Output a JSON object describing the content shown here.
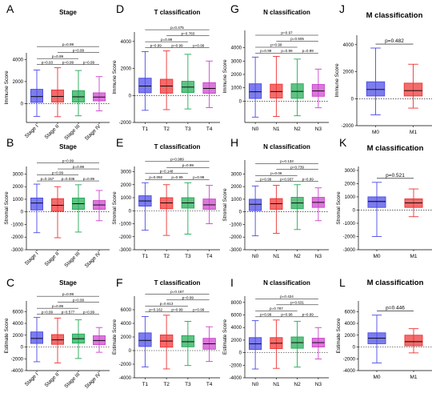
{
  "chart_data": [
    {
      "type": "box",
      "panel": "A",
      "title": "Stage",
      "ylabel": "Immune Score",
      "categories": [
        "Stage I",
        "Stage II",
        "Stage III",
        "Stage IV"
      ],
      "colors": [
        "#4a4ae8",
        "#ee3333",
        "#22aa55",
        "#cc44cc"
      ],
      "yticks": [
        0,
        2000,
        4000
      ],
      "ylim": [
        -1700,
        4600
      ],
      "boxes": [
        {
          "min": -1150,
          "q1": 120,
          "median": 640,
          "q3": 1300,
          "max": 3050
        },
        {
          "min": -1180,
          "q1": 150,
          "median": 650,
          "q3": 1240,
          "max": 3250
        },
        {
          "min": -1100,
          "q1": 140,
          "median": 620,
          "q3": 1180,
          "max": 3000
        },
        {
          "min": -650,
          "q1": 250,
          "median": 600,
          "q3": 980,
          "max": 2450
        }
      ],
      "comparisons": [
        {
          "pair": [
            1,
            2
          ],
          "p": "p=0.93"
        },
        {
          "pair": [
            2,
            3
          ],
          "p": "p=0.99"
        },
        {
          "pair": [
            3,
            4
          ],
          "p": "p=0.99"
        },
        {
          "pair": [
            1,
            3
          ],
          "p": "p=0.99"
        },
        {
          "pair": [
            2,
            4
          ],
          "p": "p=0.99"
        },
        {
          "pair": [
            1,
            4
          ],
          "p": "p=0.99"
        }
      ]
    },
    {
      "type": "box",
      "panel": "D",
      "title": "T classification",
      "ylabel": "Immune Score",
      "categories": [
        "T1",
        "T2",
        "T3",
        "T4"
      ],
      "colors": [
        "#4a4ae8",
        "#ee3333",
        "#22aa55",
        "#cc44cc"
      ],
      "yticks": [
        -2000,
        0,
        2000,
        4000
      ],
      "ylim": [
        -2000,
        4700
      ],
      "boxes": [
        {
          "min": -1100,
          "q1": 200,
          "median": 700,
          "q3": 1280,
          "max": 3250
        },
        {
          "min": -1050,
          "q1": 170,
          "median": 700,
          "q3": 1200,
          "max": 3300
        },
        {
          "min": -1000,
          "q1": 220,
          "median": 620,
          "q3": 1050,
          "max": 3050
        },
        {
          "min": -900,
          "q1": 160,
          "median": 520,
          "q3": 950,
          "max": 2550
        }
      ],
      "comparisons": [
        {
          "pair": [
            1,
            2
          ],
          "p": "p=0.99"
        },
        {
          "pair": [
            2,
            3
          ],
          "p": "p=0.99"
        },
        {
          "pair": [
            3,
            4
          ],
          "p": "p=0.99"
        },
        {
          "pair": [
            1,
            3
          ],
          "p": "p=0.99"
        },
        {
          "pair": [
            2,
            4
          ],
          "p": "p=0.783"
        },
        {
          "pair": [
            1,
            4
          ],
          "p": "p=0.475"
        }
      ]
    },
    {
      "type": "box",
      "panel": "G",
      "title": "N classification",
      "ylabel": "Immune Score",
      "categories": [
        "N0",
        "N1",
        "N2",
        "N3"
      ],
      "colors": [
        "#4a4ae8",
        "#ee3333",
        "#22aa55",
        "#cc44cc"
      ],
      "yticks": [
        0,
        1000,
        2000,
        3000,
        4000
      ],
      "ylim": [
        -1600,
        5300
      ],
      "boxes": [
        {
          "min": -1200,
          "q1": 200,
          "median": 700,
          "q3": 1300,
          "max": 3300
        },
        {
          "min": -1150,
          "q1": 230,
          "median": 720,
          "q3": 1270,
          "max": 3350
        },
        {
          "min": -1100,
          "q1": 210,
          "median": 730,
          "q3": 1300,
          "max": 3150
        },
        {
          "min": -500,
          "q1": 360,
          "median": 760,
          "q3": 1250,
          "max": 2400
        }
      ],
      "comparisons": [
        {
          "pair": [
            1,
            2
          ],
          "p": "p=0.99"
        },
        {
          "pair": [
            2,
            3
          ],
          "p": "p=0.99"
        },
        {
          "pair": [
            3,
            4
          ],
          "p": "p=0.99"
        },
        {
          "pair": [
            1,
            3
          ],
          "p": "p=0.99"
        },
        {
          "pair": [
            2,
            4
          ],
          "p": "p=0.505"
        },
        {
          "pair": [
            1,
            4
          ],
          "p": "p=0.97"
        }
      ]
    },
    {
      "type": "box",
      "panel": "J",
      "title": "M classification",
      "ylabel": "Immune Score",
      "categories": [
        "M0",
        "M1"
      ],
      "colors": [
        "#4a4ae8",
        "#ee3333"
      ],
      "yticks": [
        -2000,
        0,
        2000,
        4000
      ],
      "ylim": [
        -2000,
        4700
      ],
      "boxes": [
        {
          "min": -1200,
          "q1": 200,
          "median": 680,
          "q3": 1250,
          "max": 3750
        },
        {
          "min": -700,
          "q1": 200,
          "median": 600,
          "q3": 1150,
          "max": 2550
        }
      ],
      "comparisons": [
        {
          "pair": [
            1,
            2
          ],
          "p": "p=0.482"
        }
      ]
    },
    {
      "type": "box",
      "panel": "B",
      "title": "Stage",
      "ylabel": "Stromal Score",
      "categories": [
        "Stage I",
        "Stage II",
        "Stage III",
        "Stage IV"
      ],
      "colors": [
        "#4a4ae8",
        "#ee3333",
        "#22aa55",
        "#cc44cc"
      ],
      "yticks": [
        -3000,
        -2000,
        -1000,
        0,
        1000,
        2000,
        3000
      ],
      "ylim": [
        -3000,
        3600
      ],
      "boxes": [
        {
          "min": -1650,
          "q1": 150,
          "median": 700,
          "q3": 1100,
          "max": 2200
        },
        {
          "min": -2050,
          "q1": 50,
          "median": 520,
          "q3": 1050,
          "max": 2000
        },
        {
          "min": -1600,
          "q1": 200,
          "median": 650,
          "q3": 1100,
          "max": 2150
        },
        {
          "min": -700,
          "q1": 200,
          "median": 550,
          "q3": 900,
          "max": 1700
        }
      ],
      "comparisons": [
        {
          "pair": [
            1,
            2
          ],
          "p": "p=0.157"
        },
        {
          "pair": [
            2,
            3
          ],
          "p": "p=0.036"
        },
        {
          "pair": [
            3,
            4
          ],
          "p": "p=0.99"
        },
        {
          "pair": [
            1,
            3
          ],
          "p": "p=0.99"
        },
        {
          "pair": [
            2,
            4
          ],
          "p": "p=0.99"
        },
        {
          "pair": [
            1,
            4
          ],
          "p": "p=0.99"
        }
      ]
    },
    {
      "type": "box",
      "panel": "E",
      "title": "T classification",
      "ylabel": "Stromal Score",
      "categories": [
        "T1",
        "T2",
        "T3",
        "T4"
      ],
      "colors": [
        "#4a4ae8",
        "#ee3333",
        "#22aa55",
        "#cc44cc"
      ],
      "yticks": [
        -3000,
        -2000,
        -1000,
        0,
        1000,
        2000,
        3000
      ],
      "ylim": [
        -3000,
        3400
      ],
      "boxes": [
        {
          "min": -1500,
          "q1": 350,
          "median": 750,
          "q3": 1150,
          "max": 2150
        },
        {
          "min": -1900,
          "q1": 150,
          "median": 600,
          "q3": 1000,
          "max": 2000
        },
        {
          "min": -1800,
          "q1": 200,
          "median": 600,
          "q3": 1000,
          "max": 2150
        },
        {
          "min": -1000,
          "q1": 100,
          "median": 450,
          "q3": 900,
          "max": 1950
        }
      ],
      "comparisons": [
        {
          "pair": [
            1,
            2
          ],
          "p": "p=0.092"
        },
        {
          "pair": [
            2,
            3
          ],
          "p": "p=0.99"
        },
        {
          "pair": [
            3,
            4
          ],
          "p": "p=0.99"
        },
        {
          "pair": [
            1,
            3
          ],
          "p": "p=0.148"
        },
        {
          "pair": [
            2,
            4
          ],
          "p": "p=0.99"
        },
        {
          "pair": [
            1,
            4
          ],
          "p": "p=0.989"
        }
      ]
    },
    {
      "type": "box",
      "panel": "H",
      "title": "N classification",
      "ylabel": "Stromal Score",
      "categories": [
        "N0",
        "N1",
        "N2",
        "N3"
      ],
      "colors": [
        "#4a4ae8",
        "#ee3333",
        "#22aa55",
        "#cc44cc"
      ],
      "yticks": [
        -3000,
        -2000,
        -1000,
        0,
        1000,
        2000,
        3000
      ],
      "ylim": [
        -3000,
        4100
      ],
      "boxes": [
        {
          "min": -1900,
          "q1": 100,
          "median": 600,
          "q3": 1000,
          "max": 2050
        },
        {
          "min": -1700,
          "q1": 200,
          "median": 650,
          "q3": 1050,
          "max": 2100
        },
        {
          "min": -1400,
          "q1": 250,
          "median": 700,
          "q3": 1150,
          "max": 2150
        },
        {
          "min": -700,
          "q1": 350,
          "median": 750,
          "q3": 1150,
          "max": 1900
        }
      ],
      "comparisons": [
        {
          "pair": [
            1,
            2
          ],
          "p": "p=0.99"
        },
        {
          "pair": [
            2,
            3
          ],
          "p": "p=0.937"
        },
        {
          "pair": [
            3,
            4
          ],
          "p": "p=0.99"
        },
        {
          "pair": [
            1,
            3
          ],
          "p": "p=0.06"
        },
        {
          "pair": [
            2,
            4
          ],
          "p": "p=0.739"
        },
        {
          "pair": [
            1,
            4
          ],
          "p": "p=0.133"
        }
      ]
    },
    {
      "type": "box",
      "panel": "K",
      "title": "M classification",
      "ylabel": "Stromal Score",
      "categories": [
        "M0",
        "M1"
      ],
      "colors": [
        "#4a4ae8",
        "#ee3333"
      ],
      "yticks": [
        -3000,
        -2000,
        -1000,
        0,
        1000,
        2000,
        3000
      ],
      "ylim": [
        -3000,
        3300
      ],
      "boxes": [
        {
          "min": -2000,
          "q1": 200,
          "median": 650,
          "q3": 1000,
          "max": 2100
        },
        {
          "min": -500,
          "q1": 200,
          "median": 550,
          "q3": 850,
          "max": 1600
        }
      ],
      "comparisons": [
        {
          "pair": [
            1,
            2
          ],
          "p": "p=0.521"
        }
      ]
    },
    {
      "type": "box",
      "panel": "C",
      "title": "Stage",
      "ylabel": "Estimate Score",
      "categories": [
        "Stage I",
        "Stage II",
        "Stage III",
        "Stage IV"
      ],
      "colors": [
        "#4a4ae8",
        "#ee3333",
        "#22aa55",
        "#cc44cc"
      ],
      "yticks": [
        -4000,
        -2000,
        0,
        2000,
        4000,
        6000
      ],
      "ylim": [
        -4000,
        7800
      ],
      "boxes": [
        {
          "min": -2500,
          "q1": 600,
          "median": 1450,
          "q3": 2550,
          "max": 5000
        },
        {
          "min": -2700,
          "q1": 450,
          "median": 1200,
          "q3": 2100,
          "max": 4900
        },
        {
          "min": -1950,
          "q1": 650,
          "median": 1400,
          "q3": 2200,
          "max": 4600
        },
        {
          "min": -900,
          "q1": 400,
          "median": 1100,
          "q3": 1900,
          "max": 3300
        }
      ],
      "comparisons": [
        {
          "pair": [
            1,
            2
          ],
          "p": "p=0.99"
        },
        {
          "pair": [
            2,
            3
          ],
          "p": "p=0.577"
        },
        {
          "pair": [
            3,
            4
          ],
          "p": "p=0.99"
        },
        {
          "pair": [
            1,
            3
          ],
          "p": "p=0.99"
        },
        {
          "pair": [
            2,
            4
          ],
          "p": "p=0.99"
        },
        {
          "pair": [
            1,
            4
          ],
          "p": "p=0.99"
        }
      ]
    },
    {
      "type": "box",
      "panel": "F",
      "title": "T classification",
      "ylabel": "Estimate Score",
      "categories": [
        "T1",
        "T2",
        "T3",
        "T4"
      ],
      "colors": [
        "#4a4ae8",
        "#ee3333",
        "#22aa55",
        "#cc44cc"
      ],
      "yticks": [
        -4000,
        -2000,
        0,
        2000,
        4000,
        6000
      ],
      "ylim": [
        -4000,
        8000
      ],
      "boxes": [
        {
          "min": -2400,
          "q1": 600,
          "median": 1500,
          "q3": 2600,
          "max": 5000
        },
        {
          "min": -2700,
          "q1": 500,
          "median": 1400,
          "q3": 2300,
          "max": 5200
        },
        {
          "min": -2200,
          "q1": 550,
          "median": 1300,
          "q3": 2200,
          "max": 4300
        },
        {
          "min": -1600,
          "q1": 200,
          "median": 1000,
          "q3": 1800,
          "max": 3500
        }
      ],
      "comparisons": [
        {
          "pair": [
            1,
            2
          ],
          "p": "p=0.162"
        },
        {
          "pair": [
            2,
            3
          ],
          "p": "p=0.99"
        },
        {
          "pair": [
            3,
            4
          ],
          "p": "p=0.99"
        },
        {
          "pair": [
            1,
            3
          ],
          "p": "p=0.613"
        },
        {
          "pair": [
            2,
            4
          ],
          "p": "p=0.99"
        },
        {
          "pair": [
            1,
            4
          ],
          "p": "p=0.167"
        }
      ]
    },
    {
      "type": "box",
      "panel": "I",
      "title": "N classification",
      "ylabel": "Estimate Score",
      "categories": [
        "N0",
        "N1",
        "N2",
        "N3"
      ],
      "colors": [
        "#4a4ae8",
        "#ee3333",
        "#22aa55",
        "#cc44cc"
      ],
      "yticks": [
        -4000,
        -2000,
        0,
        2000,
        4000,
        6000,
        8000
      ],
      "ylim": [
        -4000,
        9000
      ],
      "boxes": [
        {
          "min": -2600,
          "q1": 500,
          "median": 1400,
          "q3": 2400,
          "max": 5100
        },
        {
          "min": -2500,
          "q1": 650,
          "median": 1500,
          "q3": 2400,
          "max": 5200
        },
        {
          "min": -2300,
          "q1": 700,
          "median": 1600,
          "q3": 2500,
          "max": 5000
        },
        {
          "min": -1000,
          "q1": 900,
          "median": 1600,
          "q3": 2300,
          "max": 4000
        }
      ],
      "comparisons": [
        {
          "pair": [
            1,
            2
          ],
          "p": "p=0.99"
        },
        {
          "pair": [
            2,
            3
          ],
          "p": "p=0.98"
        },
        {
          "pair": [
            3,
            4
          ],
          "p": "p=0.99"
        },
        {
          "pair": [
            1,
            3
          ],
          "p": "p=0.787"
        },
        {
          "pair": [
            2,
            4
          ],
          "p": "p=0.631"
        },
        {
          "pair": [
            1,
            4
          ],
          "p": "p=0.424"
        }
      ]
    },
    {
      "type": "box",
      "panel": "L",
      "title": "M classification",
      "ylabel": "Estimate Score",
      "categories": [
        "M0",
        "M1"
      ],
      "colors": [
        "#4a4ae8",
        "#ee3333"
      ],
      "yticks": [
        -4000,
        -2000,
        0,
        2000,
        4000,
        6000
      ],
      "ylim": [
        -4000,
        7800
      ],
      "boxes": [
        {
          "min": -2700,
          "q1": 550,
          "median": 1500,
          "q3": 2400,
          "max": 5400
        },
        {
          "min": -1000,
          "q1": 200,
          "median": 900,
          "q3": 2000,
          "max": 3100
        }
      ],
      "comparisons": [
        {
          "pair": [
            1,
            2
          ],
          "p": "p=0.446"
        }
      ]
    }
  ]
}
